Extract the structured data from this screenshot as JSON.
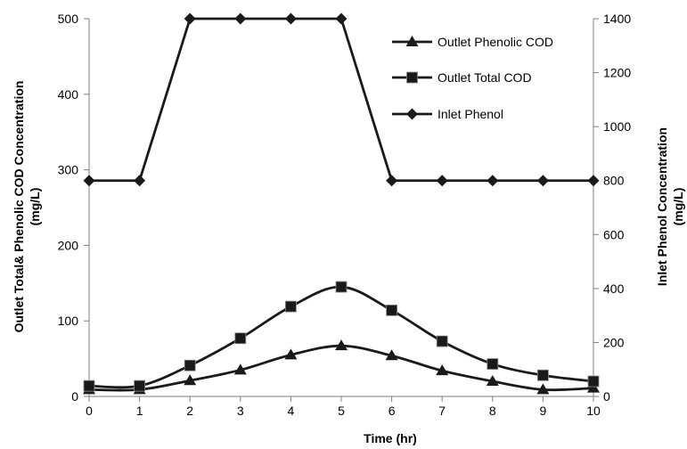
{
  "chart_data": {
    "type": "line",
    "x": [
      0,
      1,
      2,
      3,
      4,
      5,
      6,
      7,
      8,
      9,
      10
    ],
    "xlabel": "Time (hr)",
    "ylabel_left_line1": "Outlet Total& Phenolic COD Concentration",
    "ylabel_left_line2": "(mg/L)",
    "ylabel_right_line1": "Inlet Phenol Concentration",
    "ylabel_right_line2": "(mg/L)",
    "xlim": [
      0,
      10
    ],
    "ylim_left": [
      0,
      500
    ],
    "ylim_right": [
      0,
      1400
    ],
    "x_ticks": [
      "0",
      "1",
      "2",
      "3",
      "4",
      "5",
      "6",
      "7",
      "8",
      "9",
      "10"
    ],
    "y_left_ticks": [
      "0",
      "100",
      "200",
      "300",
      "400",
      "500"
    ],
    "y_right_ticks": [
      "0",
      "200",
      "400",
      "600",
      "800",
      "1000",
      "1200",
      "1400"
    ],
    "grid": false,
    "legend_position": "top-right",
    "series": [
      {
        "name": "Outlet Phenolic COD",
        "axis": "left",
        "marker": "triangle",
        "values": [
          9,
          9,
          21,
          35,
          55,
          67,
          54,
          34,
          20,
          9,
          11
        ]
      },
      {
        "name": "Outlet Total COD",
        "axis": "left",
        "marker": "square",
        "values": [
          14,
          14,
          41,
          77,
          119,
          145,
          114,
          73,
          43,
          28,
          20
        ]
      },
      {
        "name": "Inlet Phenol",
        "axis": "right",
        "marker": "diamond",
        "values": [
          800,
          800,
          1400,
          1400,
          1400,
          1400,
          800,
          800,
          800,
          800,
          800
        ]
      }
    ]
  }
}
